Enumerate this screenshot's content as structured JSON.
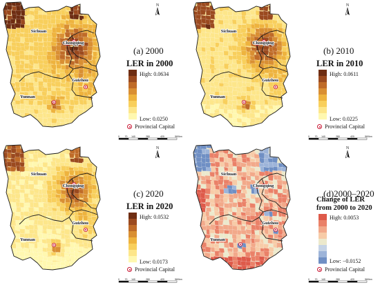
{
  "panels": [
    {
      "tag": "(a) 2000",
      "legend_title_lines": [
        "LER in 2000"
      ],
      "high_label": "High: 0.0634",
      "low_label": "Low: 0.0250",
      "capital_label": "Provincial Capital",
      "palette": "ler",
      "ramp": [
        "#fff8b0",
        "#fde68a",
        "#f8cf5c",
        "#eeb33e",
        "#d98f33",
        "#bf6b28",
        "#9b4a1f",
        "#6e2d12"
      ]
    },
    {
      "tag": "(b) 2010",
      "legend_title_lines": [
        "LER in 2010"
      ],
      "high_label": "High: 0.0611",
      "low_label": "Low: 0.0225",
      "capital_label": "Provincial Capital",
      "palette": "ler",
      "ramp": [
        "#fff8b0",
        "#fde68a",
        "#f8cf5c",
        "#eeb33e",
        "#d98f33",
        "#bf6b28",
        "#9b4a1f",
        "#6e2d12"
      ]
    },
    {
      "tag": "(c) 2020",
      "legend_title_lines": [
        "LER in 2020"
      ],
      "high_label": "High: 0.0532",
      "low_label": "Low: 0.0173",
      "capital_label": "Provincial Capital",
      "palette": "ler",
      "ramp": [
        "#fff8b0",
        "#fde68a",
        "#f8cf5c",
        "#eeb33e",
        "#d98f33",
        "#bf6b28",
        "#9b4a1f",
        "#6e2d12"
      ]
    },
    {
      "tag": "(d)2000–2020",
      "legend_title_lines": [
        "Change of LER",
        "from 2000 to 2020"
      ],
      "high_label": "High: 0.0053",
      "low_label": "Low: −0.0152",
      "capital_label": "Provincial Capital",
      "palette": "change",
      "ramp": [
        "#6f8fc4",
        "#9db4d9",
        "#c5d3e6",
        "#ece9cc",
        "#f7cba7",
        "#f2a98a",
        "#ea8168",
        "#de5a4a"
      ]
    }
  ],
  "province_labels": [
    "Sichuan",
    "Chongqing",
    "Guizhou",
    "Yunnan"
  ],
  "north_label": "N",
  "scale_ticks": [
    "0",
    "70",
    "140",
    "280",
    "420",
    "560"
  ],
  "scale_unit": "km",
  "capital_color": "#c8102e",
  "boundary_color": "#1a1a1a"
}
